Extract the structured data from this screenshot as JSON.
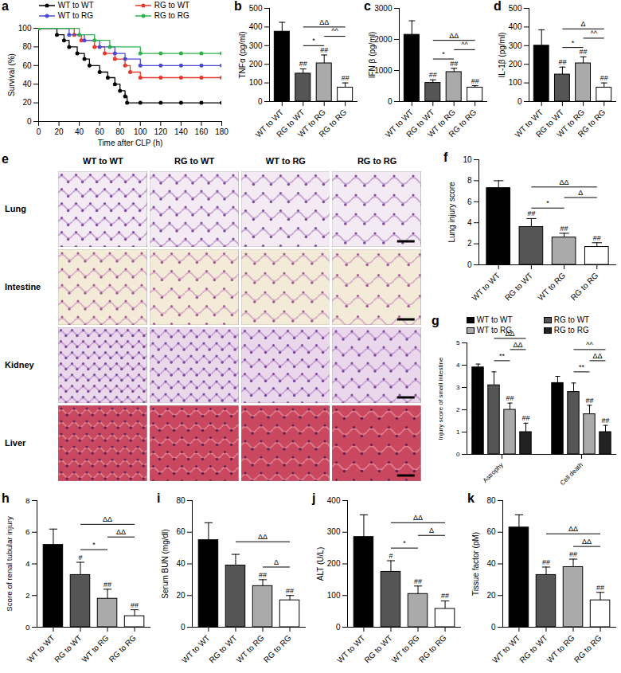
{
  "chart_data": [
    {
      "panel": "a",
      "type": "line",
      "x_label": "Time after CLP (h)",
      "y_label": "Survival (%)",
      "xlim": [
        0,
        180
      ],
      "xticks": [
        0,
        20,
        40,
        60,
        80,
        100,
        120,
        140,
        160,
        180
      ],
      "ylim": [
        0,
        100
      ],
      "yticks": [
        0,
        20,
        40,
        60,
        80,
        100
      ],
      "legend": "top",
      "series": [
        {
          "name": "WT to WT",
          "color": "#000000",
          "marker": "circle",
          "x": [
            0,
            18,
            25,
            30,
            38,
            45,
            50,
            60,
            68,
            75,
            80,
            85,
            87,
            100,
            120,
            140,
            160,
            180
          ],
          "values": [
            100,
            93,
            87,
            80,
            73,
            67,
            60,
            53,
            47,
            40,
            33,
            27,
            20,
            20,
            20,
            20,
            20,
            20
          ]
        },
        {
          "name": "RG to WT",
          "color": "#e8382b",
          "marker": "circle",
          "x": [
            0,
            35,
            42,
            55,
            65,
            75,
            85,
            90,
            100,
            120,
            140,
            160,
            180
          ],
          "values": [
            100,
            93,
            87,
            80,
            73,
            67,
            60,
            53,
            47,
            47,
            47,
            47,
            47
          ]
        },
        {
          "name": "WT to RG",
          "color": "#4a4ad6",
          "marker": "circle",
          "x": [
            0,
            30,
            45,
            60,
            75,
            85,
            100,
            120,
            140,
            160,
            180
          ],
          "values": [
            100,
            93,
            87,
            80,
            73,
            67,
            60,
            60,
            60,
            60,
            60
          ]
        },
        {
          "name": "RG to RG",
          "color": "#2db34a",
          "marker": "circle",
          "x": [
            0,
            40,
            55,
            70,
            100,
            120,
            140,
            160,
            180
          ],
          "values": [
            100,
            93,
            87,
            80,
            73,
            73,
            73,
            73,
            73
          ]
        }
      ]
    },
    {
      "panel": "b",
      "type": "bar",
      "y_label": "TNFα (pg/ml)",
      "categories": [
        "WT to WT",
        "RG to WT",
        "WT to RG",
        "RG to RG"
      ],
      "values": [
        375,
        150,
        205,
        75
      ],
      "errors": [
        50,
        25,
        45,
        25
      ],
      "colors": [
        "#000000",
        "#555555",
        "#aaaaaa",
        "#ffffff"
      ],
      "significance": [
        null,
        "##",
        "##",
        "##"
      ],
      "comparisons": [
        {
          "from": 1,
          "to": 2,
          "label": "*"
        },
        {
          "from": 1,
          "to": 3,
          "label": "ΔΔ"
        },
        {
          "from": 2,
          "to": 3,
          "label": "^^"
        }
      ],
      "ylim": [
        0,
        500
      ],
      "yticks": [
        0,
        100,
        200,
        300,
        400,
        500
      ]
    },
    {
      "panel": "c",
      "type": "bar",
      "y_label": "IFN β (pg/ml)",
      "categories": [
        "WT to WT",
        "RG to WT",
        "WT to RG",
        "RG to RG"
      ],
      "values": [
        2150,
        600,
        950,
        450
      ],
      "errors": [
        450,
        100,
        120,
        60
      ],
      "colors": [
        "#000000",
        "#555555",
        "#aaaaaa",
        "#ffffff"
      ],
      "significance": [
        null,
        "##",
        "##",
        "##"
      ],
      "comparisons": [
        {
          "from": 1,
          "to": 2,
          "label": "*"
        },
        {
          "from": 1,
          "to": 3,
          "label": "ΔΔ"
        },
        {
          "from": 2,
          "to": 3,
          "label": "^^"
        }
      ],
      "ylim": [
        0,
        3000
      ],
      "yticks": [
        0,
        1000,
        2000,
        3000
      ]
    },
    {
      "panel": "d",
      "type": "bar",
      "y_label": "IL-1β (pg/ml)",
      "categories": [
        "WT to WT",
        "RG to WT",
        "WT to RG",
        "RG to RG"
      ],
      "values": [
        300,
        145,
        205,
        75
      ],
      "errors": [
        85,
        40,
        35,
        25
      ],
      "colors": [
        "#000000",
        "#555555",
        "#aaaaaa",
        "#ffffff"
      ],
      "significance": [
        null,
        "##",
        "##",
        "##"
      ],
      "comparisons": [
        {
          "from": 1,
          "to": 2,
          "label": "*"
        },
        {
          "from": 1,
          "to": 3,
          "label": "Δ"
        },
        {
          "from": 2,
          "to": 3,
          "label": "^^"
        }
      ],
      "ylim": [
        0,
        500
      ],
      "yticks": [
        0,
        100,
        200,
        300,
        400,
        500
      ]
    },
    {
      "panel": "f",
      "type": "bar",
      "y_label": "Lung injury score",
      "categories": [
        "WT to WT",
        "RG to WT",
        "WT to RG",
        "RG to RG"
      ],
      "values": [
        7.3,
        3.6,
        2.6,
        1.7
      ],
      "errors": [
        0.7,
        0.8,
        0.4,
        0.4
      ],
      "colors": [
        "#000000",
        "#555555",
        "#aaaaaa",
        "#ffffff"
      ],
      "significance": [
        null,
        "##",
        "##",
        "##"
      ],
      "comparisons": [
        {
          "from": 1,
          "to": 2,
          "label": "*"
        },
        {
          "from": 1,
          "to": 3,
          "label": "ΔΔ"
        },
        {
          "from": 2,
          "to": 3,
          "label": "Δ"
        }
      ],
      "ylim": [
        0,
        10
      ],
      "yticks": [
        0,
        2,
        4,
        6,
        8,
        10
      ]
    },
    {
      "panel": "g",
      "type": "bar",
      "y_label": "Injury score of small intestine",
      "legend": "top",
      "categories": [
        "Astrophy",
        "Cell death"
      ],
      "series": [
        {
          "name": "WT to WT",
          "color": "#000000",
          "values": [
            3.9,
            3.2
          ],
          "errors": [
            0.15,
            0.3
          ],
          "significance": [
            null,
            null
          ]
        },
        {
          "name": "RG to WT",
          "color": "#555555",
          "values": [
            3.1,
            2.8
          ],
          "errors": [
            0.6,
            0.4
          ],
          "significance": [
            null,
            null
          ]
        },
        {
          "name": "WT to RG",
          "color": "#aaaaaa",
          "values": [
            2.0,
            1.8
          ],
          "errors": [
            0.3,
            0.4
          ],
          "significance": [
            "##",
            "##"
          ]
        },
        {
          "name": "RG to RG",
          "color": "#222222",
          "values": [
            1.0,
            1.0
          ],
          "errors": [
            0.4,
            0.3
          ],
          "significance": [
            "##",
            "##"
          ]
        }
      ],
      "comparisons": [
        [
          {
            "from": 1,
            "to": 2,
            "label": "**"
          },
          {
            "from": 1,
            "to": 3,
            "label": "ΔΔ"
          },
          {
            "from": 2,
            "to": 3,
            "label": "ΔΔ"
          }
        ],
        [
          {
            "from": 1,
            "to": 2,
            "label": "**"
          },
          {
            "from": 1,
            "to": 3,
            "label": "^^"
          },
          {
            "from": 2,
            "to": 3,
            "label": "ΔΔ"
          }
        ]
      ],
      "ylim": [
        0,
        5
      ],
      "yticks": [
        0,
        1,
        2,
        3,
        4,
        5
      ]
    },
    {
      "panel": "h",
      "type": "bar",
      "y_label": "Score of renal tubular injury",
      "categories": [
        "WT to WT",
        "RG to WT",
        "WT to RG",
        "RG to RG"
      ],
      "values": [
        5.2,
        3.3,
        1.8,
        0.7
      ],
      "errors": [
        1.0,
        0.8,
        0.6,
        0.4
      ],
      "colors": [
        "#000000",
        "#555555",
        "#aaaaaa",
        "#ffffff"
      ],
      "significance": [
        null,
        "#",
        "##",
        "##"
      ],
      "comparisons": [
        {
          "from": 1,
          "to": 2,
          "label": "*"
        },
        {
          "from": 1,
          "to": 3,
          "label": "ΔΔ"
        },
        {
          "from": 2,
          "to": 3,
          "label": "ΔΔ"
        }
      ],
      "ylim": [
        0,
        8
      ],
      "yticks": [
        0,
        2,
        4,
        6,
        8
      ]
    },
    {
      "panel": "i",
      "type": "bar",
      "y_label": "Serum BUN (mg/dl)",
      "categories": [
        "WT to WT",
        "RG to WT",
        "WT to RG",
        "RG to RG"
      ],
      "values": [
        55,
        39,
        26,
        17
      ],
      "errors": [
        11,
        7,
        4,
        3
      ],
      "colors": [
        "#000000",
        "#555555",
        "#aaaaaa",
        "#ffffff"
      ],
      "significance": [
        null,
        null,
        "##",
        "##"
      ],
      "comparisons": [
        {
          "from": 1,
          "to": 3,
          "label": "ΔΔ"
        },
        {
          "from": 2,
          "to": 3,
          "label": "Δ"
        }
      ],
      "ylim": [
        0,
        80
      ],
      "yticks": [
        0,
        20,
        40,
        60,
        80
      ]
    },
    {
      "panel": "j",
      "type": "bar",
      "y_label": "ALT (U/L)",
      "categories": [
        "WT to WT",
        "RG to WT",
        "WT to RG",
        "RG to RG"
      ],
      "values": [
        285,
        175,
        105,
        58
      ],
      "errors": [
        70,
        35,
        25,
        25
      ],
      "colors": [
        "#000000",
        "#555555",
        "#aaaaaa",
        "#ffffff"
      ],
      "significance": [
        null,
        "#",
        "##",
        "##"
      ],
      "comparisons": [
        {
          "from": 1,
          "to": 2,
          "label": "*"
        },
        {
          "from": 1,
          "to": 3,
          "label": "ΔΔ"
        },
        {
          "from": 2,
          "to": 3,
          "label": "Δ"
        }
      ],
      "ylim": [
        0,
        400
      ],
      "yticks": [
        0,
        100,
        200,
        300,
        400
      ]
    },
    {
      "panel": "k",
      "type": "bar",
      "y_label": "Tissue factor (pM)",
      "categories": [
        "WT to WT",
        "RG to WT",
        "WT to RG",
        "RG to RG"
      ],
      "values": [
        63,
        33,
        38,
        17
      ],
      "errors": [
        8,
        5,
        5,
        5
      ],
      "colors": [
        "#000000",
        "#555555",
        "#aaaaaa",
        "#ffffff"
      ],
      "significance": [
        null,
        "##",
        "##",
        "##"
      ],
      "comparisons": [
        {
          "from": 1,
          "to": 3,
          "label": "ΔΔ"
        },
        {
          "from": 2,
          "to": 3,
          "label": "ΔΔ"
        }
      ],
      "ylim": [
        0,
        80
      ],
      "yticks": [
        0,
        20,
        40,
        60,
        80
      ]
    }
  ],
  "histology": {
    "panel": "e",
    "columns": [
      "WT to WT",
      "RG to WT",
      "WT to RG",
      "RG to RG"
    ],
    "rows": [
      "Lung",
      "Intestine",
      "Kidney",
      "Liver"
    ]
  }
}
